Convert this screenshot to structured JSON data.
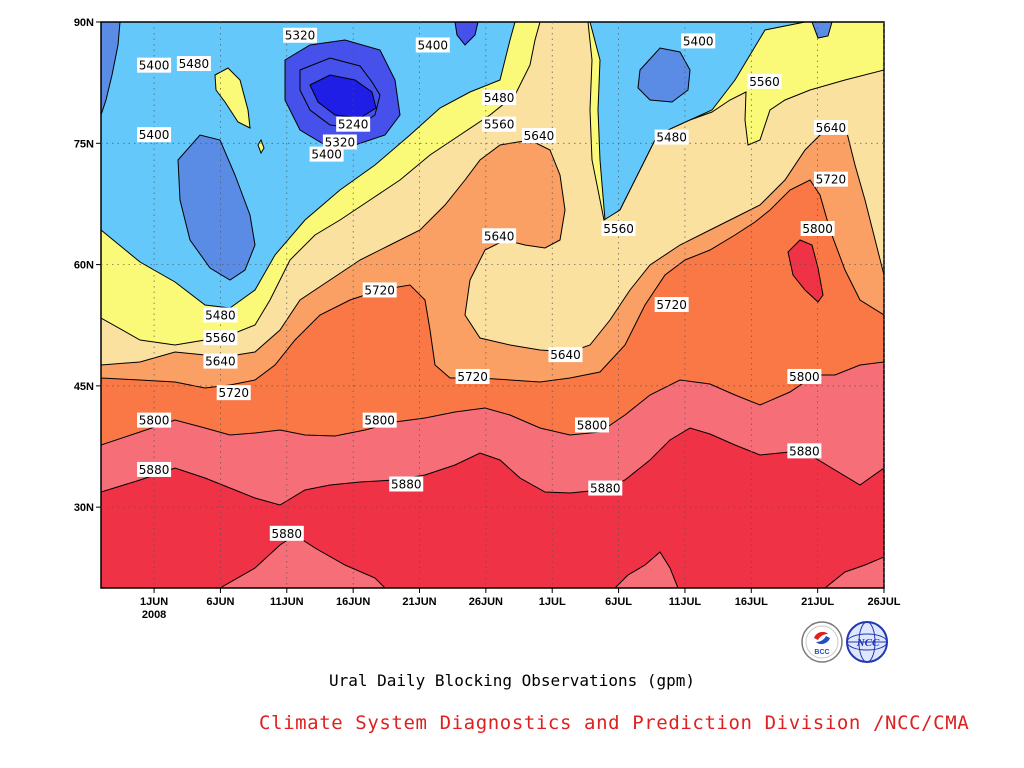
{
  "chart_data": {
    "type": "heatmap",
    "title": "Ural Daily Blocking Observations (gpm)",
    "x_ticks": [
      "1JUN\n2008",
      "6JUN",
      "11JUN",
      "16JUN",
      "21JUN",
      "26JUN",
      "1JUL",
      "6JUL",
      "11JUL",
      "16JUL",
      "21JUL",
      "26JUL"
    ],
    "y_ticks": [
      "90N",
      "75N",
      "60N",
      "45N",
      "30N"
    ],
    "y_tick_values": [
      90,
      75,
      60,
      45,
      30
    ],
    "x_range": [
      "2008-05-28",
      "2008-07-26"
    ],
    "y_range": [
      20,
      90
    ],
    "contour_levels": [
      5240,
      5320,
      5400,
      5480,
      5560,
      5640,
      5720,
      5800,
      5880
    ],
    "level_colors": {
      "lt5240": "#1e1ee6",
      "5240": "#4650eb",
      "5320": "#5a8ce6",
      "5400": "#64c8fa",
      "5480": "#fafa78",
      "5560": "#fae1a0",
      "5640": "#faa064",
      "5720": "#fa7846",
      "5800": "#f56e78",
      "5880": "#f03246"
    },
    "contour_labels": [
      {
        "text": "5320",
        "date": "2008-06-12",
        "lat": 88.3
      },
      {
        "text": "5400",
        "date": "2008-06-22",
        "lat": 87.1
      },
      {
        "text": "5400",
        "date": "2008-07-12",
        "lat": 87.6
      },
      {
        "text": "5400",
        "date": "2008-06-01",
        "lat": 84.6
      },
      {
        "text": "5480",
        "date": "2008-06-04",
        "lat": 84.8
      },
      {
        "text": "5480",
        "date": "2008-06-27",
        "lat": 80.6
      },
      {
        "text": "5560",
        "date": "2008-07-17",
        "lat": 82.6
      },
      {
        "text": "5240",
        "date": "2008-06-16",
        "lat": 77.3
      },
      {
        "text": "5560",
        "date": "2008-06-27",
        "lat": 77.3
      },
      {
        "text": "5400",
        "date": "2008-06-01",
        "lat": 76.0
      },
      {
        "text": "5320",
        "date": "2008-06-15",
        "lat": 75.1
      },
      {
        "text": "5640",
        "date": "2008-06-30",
        "lat": 75.9
      },
      {
        "text": "5640",
        "date": "2008-07-22",
        "lat": 76.9
      },
      {
        "text": "5480",
        "date": "2008-07-10",
        "lat": 75.7
      },
      {
        "text": "5400",
        "date": "2008-06-14",
        "lat": 73.6
      },
      {
        "text": "5720",
        "date": "2008-07-22",
        "lat": 70.5
      },
      {
        "text": "5640",
        "date": "2008-06-27",
        "lat": 63.5
      },
      {
        "text": "5560",
        "date": "2008-07-06",
        "lat": 64.4
      },
      {
        "text": "5800",
        "date": "2008-07-21",
        "lat": 64.4
      },
      {
        "text": "5720",
        "date": "2008-06-18",
        "lat": 56.8
      },
      {
        "text": "5720",
        "date": "2008-07-10",
        "lat": 55.0
      },
      {
        "text": "5480",
        "date": "2008-06-06",
        "lat": 53.7
      },
      {
        "text": "5560",
        "date": "2008-06-06",
        "lat": 50.9
      },
      {
        "text": "5640",
        "date": "2008-06-06",
        "lat": 48.0
      },
      {
        "text": "5640",
        "date": "2008-07-02",
        "lat": 48.8
      },
      {
        "text": "5720",
        "date": "2008-06-25",
        "lat": 46.1
      },
      {
        "text": "5800",
        "date": "2008-07-20",
        "lat": 46.1
      },
      {
        "text": "5720",
        "date": "2008-06-07",
        "lat": 44.1
      },
      {
        "text": "5800",
        "date": "2008-06-01",
        "lat": 40.7
      },
      {
        "text": "5800",
        "date": "2008-06-18",
        "lat": 40.7
      },
      {
        "text": "5800",
        "date": "2008-07-04",
        "lat": 40.1
      },
      {
        "text": "5880",
        "date": "2008-07-20",
        "lat": 36.9
      },
      {
        "text": "5880",
        "date": "2008-06-01",
        "lat": 34.6
      },
      {
        "text": "5880",
        "date": "2008-06-20",
        "lat": 32.8
      },
      {
        "text": "5880",
        "date": "2008-07-05",
        "lat": 32.3
      },
      {
        "text": "5880",
        "date": "2008-06-11",
        "lat": 26.7
      }
    ]
  },
  "footer": {
    "credit": "Climate System Diagnostics and Prediction Division /NCC/CMA",
    "logo_left": "BCC",
    "logo_right": "NCC"
  }
}
